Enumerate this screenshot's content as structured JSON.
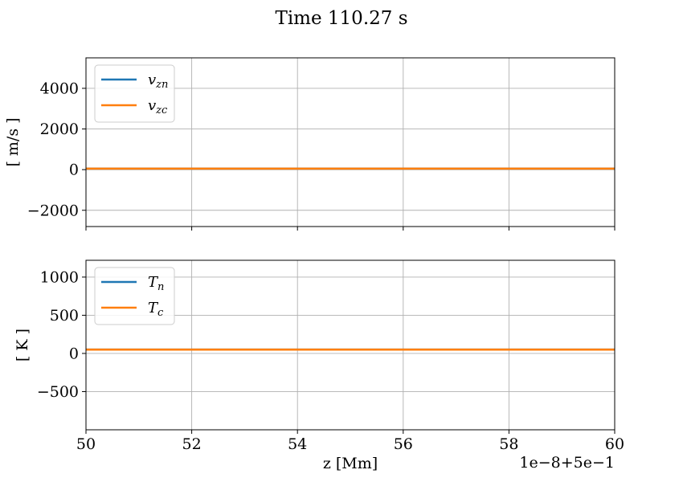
{
  "figure": {
    "suptitle": "Time 110.27 s",
    "x_offset_label": "1e−8+5e−1"
  },
  "chart_data": [
    {
      "type": "line",
      "title": "",
      "xlabel": "",
      "ylabel": "[ m/s ]",
      "xlim": [
        50,
        60
      ],
      "ylim": [
        -2800,
        5500
      ],
      "xticks": [
        50,
        52,
        54,
        56,
        58,
        60
      ],
      "yticks": [
        -2000,
        0,
        2000,
        4000
      ],
      "ytick_labels": [
        "−2000",
        "0",
        "2000",
        "4000"
      ],
      "grid": true,
      "legend": "upper-left",
      "series": [
        {
          "name": "v_zn",
          "name_main": "v",
          "name_sub": "zn",
          "color": "#1f77b4",
          "x": [
            50,
            60
          ],
          "y": [
            50,
            50
          ]
        },
        {
          "name": "v_zc",
          "name_main": "v",
          "name_sub": "zc",
          "color": "#ff7f0e",
          "x": [
            50,
            60
          ],
          "y": [
            50,
            50
          ]
        }
      ]
    },
    {
      "type": "line",
      "title": "",
      "xlabel": "z [Mm]",
      "ylabel": "[ K ]",
      "xlim": [
        50,
        60
      ],
      "ylim": [
        -1000,
        1220
      ],
      "xticks": [
        50,
        52,
        54,
        56,
        58,
        60
      ],
      "xtick_labels": [
        "50",
        "52",
        "54",
        "56",
        "58",
        "60"
      ],
      "yticks": [
        -500,
        0,
        500,
        1000
      ],
      "ytick_labels": [
        "−500",
        "0",
        "500",
        "1000"
      ],
      "grid": true,
      "legend": "upper-left",
      "series": [
        {
          "name": "T_n",
          "name_main": "T",
          "name_sub": "n",
          "color": "#1f77b4",
          "x": [
            50,
            60
          ],
          "y": [
            50,
            50
          ]
        },
        {
          "name": "T_c",
          "name_main": "T",
          "name_sub": "c",
          "color": "#ff7f0e",
          "x": [
            50,
            60
          ],
          "y": [
            50,
            50
          ]
        }
      ]
    }
  ]
}
